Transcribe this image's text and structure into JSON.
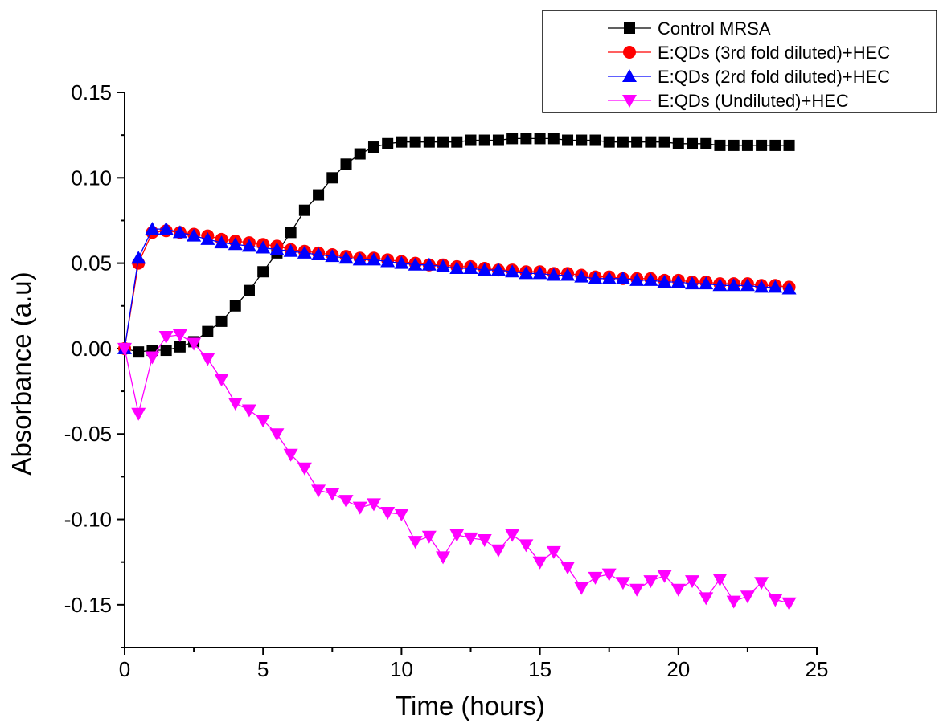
{
  "chart_data": {
    "type": "line",
    "title": "",
    "xlabel": "Time (hours)",
    "ylabel": "Absorbance (a.u)",
    "xlim": [
      0,
      25
    ],
    "ylim": [
      -0.175,
      0.15
    ],
    "x_ticks": [
      0,
      5,
      10,
      15,
      20,
      25
    ],
    "x_tick_labels": [
      "0",
      "5",
      "10",
      "15",
      "20",
      "25"
    ],
    "y_ticks": [
      -0.15,
      -0.1,
      -0.05,
      0.0,
      0.05,
      0.1,
      0.15
    ],
    "y_tick_labels": [
      "-0.15",
      "-0.10",
      "-0.05",
      "0.00",
      "0.05",
      "0.10",
      "0.15"
    ],
    "grid": false,
    "legend_position": "top-right",
    "x": [
      0,
      0.5,
      1,
      1.5,
      2,
      2.5,
      3,
      3.5,
      4,
      4.5,
      5,
      5.5,
      6,
      6.5,
      7,
      7.5,
      8,
      8.5,
      9,
      9.5,
      10,
      10.5,
      11,
      11.5,
      12,
      12.5,
      13,
      13.5,
      14,
      14.5,
      15,
      15.5,
      16,
      16.5,
      17,
      17.5,
      18,
      18.5,
      19,
      19.5,
      20,
      20.5,
      21,
      21.5,
      22,
      22.5,
      23,
      23.5,
      24
    ],
    "series": [
      {
        "name": "Control MRSA",
        "color": "#000000",
        "marker": "square",
        "values": [
          0.0,
          -0.002,
          -0.001,
          -0.001,
          0.001,
          0.004,
          0.01,
          0.016,
          0.025,
          0.034,
          0.045,
          0.056,
          0.068,
          0.081,
          0.09,
          0.1,
          0.108,
          0.114,
          0.118,
          0.12,
          0.121,
          0.121,
          0.121,
          0.121,
          0.121,
          0.122,
          0.122,
          0.122,
          0.123,
          0.123,
          0.123,
          0.123,
          0.122,
          0.122,
          0.122,
          0.121,
          0.121,
          0.121,
          0.121,
          0.121,
          0.12,
          0.12,
          0.12,
          0.119,
          0.119,
          0.119,
          0.119,
          0.119,
          0.119
        ]
      },
      {
        "name": "E:QDs (3rd fold diluted)+HEC",
        "color": "#ff0000",
        "marker": "circle",
        "values": [
          0.0,
          0.05,
          0.068,
          0.069,
          0.068,
          0.067,
          0.066,
          0.064,
          0.063,
          0.062,
          0.061,
          0.06,
          0.058,
          0.057,
          0.056,
          0.055,
          0.054,
          0.053,
          0.053,
          0.052,
          0.051,
          0.05,
          0.049,
          0.049,
          0.048,
          0.048,
          0.047,
          0.046,
          0.046,
          0.045,
          0.045,
          0.044,
          0.044,
          0.043,
          0.042,
          0.042,
          0.041,
          0.041,
          0.041,
          0.04,
          0.04,
          0.039,
          0.039,
          0.038,
          0.038,
          0.038,
          0.037,
          0.037,
          0.036
        ]
      },
      {
        "name": "E:QDs (2rd fold diluted)+HEC",
        "color": "#0000ff",
        "marker": "triangle-up",
        "values": [
          0.0,
          0.053,
          0.07,
          0.07,
          0.068,
          0.066,
          0.064,
          0.062,
          0.061,
          0.06,
          0.059,
          0.058,
          0.057,
          0.056,
          0.055,
          0.054,
          0.053,
          0.052,
          0.052,
          0.051,
          0.05,
          0.049,
          0.049,
          0.048,
          0.047,
          0.047,
          0.046,
          0.046,
          0.045,
          0.044,
          0.044,
          0.043,
          0.043,
          0.042,
          0.041,
          0.041,
          0.041,
          0.04,
          0.04,
          0.039,
          0.039,
          0.038,
          0.038,
          0.037,
          0.037,
          0.037,
          0.036,
          0.036,
          0.035
        ]
      },
      {
        "name": "E:QDs (Undiluted)+HEC",
        "color": "#ff00ff",
        "marker": "triangle-down",
        "values": [
          0.0,
          -0.038,
          -0.005,
          0.007,
          0.008,
          0.003,
          -0.006,
          -0.018,
          -0.032,
          -0.036,
          -0.042,
          -0.05,
          -0.062,
          -0.07,
          -0.083,
          -0.085,
          -0.089,
          -0.093,
          -0.091,
          -0.096,
          -0.097,
          -0.113,
          -0.11,
          -0.122,
          -0.109,
          -0.111,
          -0.112,
          -0.118,
          -0.109,
          -0.115,
          -0.125,
          -0.119,
          -0.128,
          -0.14,
          -0.134,
          -0.132,
          -0.137,
          -0.141,
          -0.136,
          -0.133,
          -0.141,
          -0.136,
          -0.146,
          -0.135,
          -0.148,
          -0.145,
          -0.137,
          -0.147,
          -0.149
        ]
      }
    ]
  }
}
